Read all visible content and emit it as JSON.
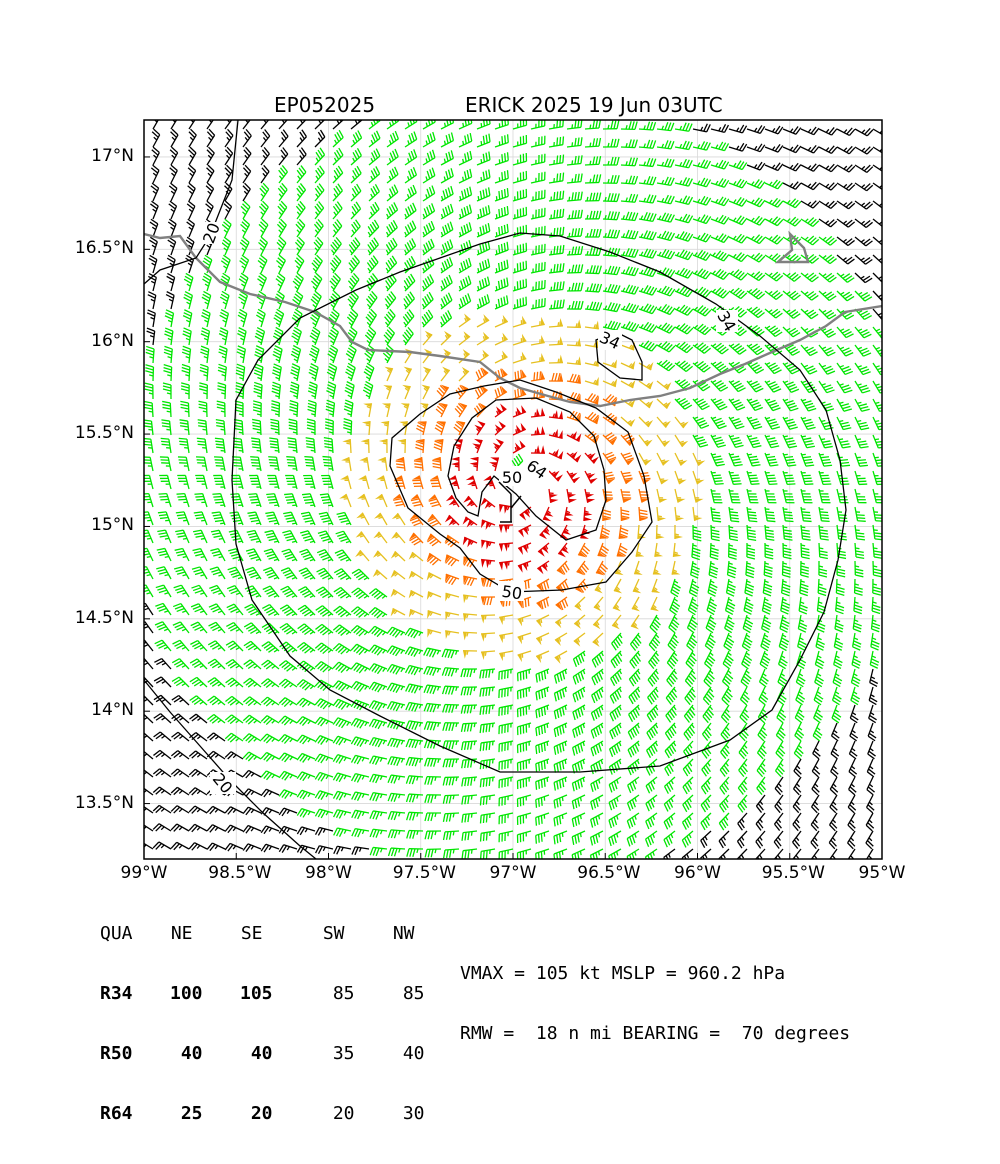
{
  "header": {
    "storm_id": "EP052025",
    "storm_label": "ERICK 2025 19 Jun 03UTC"
  },
  "map": {
    "lon_range": [
      -99.0,
      -95.0
    ],
    "lat_range": [
      13.2,
      17.2
    ],
    "x_ticks": [
      "99°W",
      "98.5°W",
      "98°W",
      "97.5°W",
      "97°W",
      "96.5°W",
      "96°W",
      "95.5°W",
      "95°W"
    ],
    "y_ticks": [
      "17°N",
      "16.5°N",
      "16°N",
      "15.5°N",
      "15°N",
      "14.5°N",
      "14°N",
      "13.5°N"
    ],
    "center": {
      "lon": -96.95,
      "lat": 15.22
    },
    "contour_labels": [
      "20",
      "34",
      "34",
      "50",
      "50",
      "64",
      "20"
    ],
    "wind_colors": {
      "below_34": "#000000",
      "34_to_50": "#00e600",
      "50_to_64": "#e6c020",
      "64_to_100": "#ff7000",
      "above_100": "#e00000"
    },
    "coastline_color": "#808080",
    "grid": true
  },
  "wind_radii": {
    "headers": [
      "QUA",
      "NE",
      "SE",
      "SW",
      "NW"
    ],
    "rows": [
      {
        "label": "R34",
        "values": [
          "100",
          "105",
          "85",
          "85"
        ]
      },
      {
        "label": "R50",
        "values": [
          "40",
          "40",
          "35",
          "40"
        ]
      },
      {
        "label": "R64",
        "values": [
          "25",
          "20",
          "20",
          "30"
        ]
      }
    ]
  },
  "summary": {
    "line1": "VMAX = 105 kt MSLP = 960.2 hPa",
    "line2": "RMW =  18 n mi BEARING =  70 degrees"
  }
}
